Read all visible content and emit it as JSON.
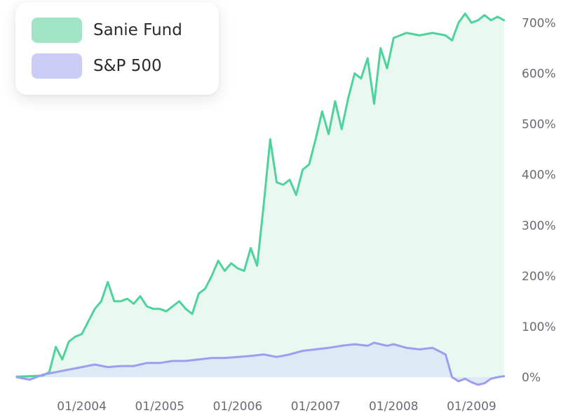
{
  "chart_data": {
    "type": "line",
    "title": "",
    "xlabel": "",
    "ylabel": "",
    "x_tick_labels": [
      "01/2004",
      "01/2005",
      "01/2006",
      "01/2007",
      "01/2008",
      "01/2009"
    ],
    "y_tick_labels": [
      "0%",
      "100%",
      "200%",
      "300%",
      "400%",
      "500%",
      "600%",
      "700%"
    ],
    "ylim": [
      0,
      720
    ],
    "x_range": [
      "2003-03",
      "2009-07"
    ],
    "legend_position": "top-left",
    "y_axis_position": "right",
    "series": [
      {
        "name": "Sanie Fund",
        "color": "#4dd39b",
        "fill": "#e5f8ee",
        "points": [
          [
            "2003-03",
            1
          ],
          [
            "2003-05",
            2
          ],
          [
            "2003-07",
            3
          ],
          [
            "2003-08",
            10
          ],
          [
            "2003-09",
            60
          ],
          [
            "2003-10",
            35
          ],
          [
            "2003-11",
            70
          ],
          [
            "2003-12",
            80
          ],
          [
            "2004-01",
            85
          ],
          [
            "2004-02",
            110
          ],
          [
            "2004-03",
            135
          ],
          [
            "2004-04",
            150
          ],
          [
            "2004-05",
            188
          ],
          [
            "2004-06",
            150
          ],
          [
            "2004-07",
            150
          ],
          [
            "2004-08",
            155
          ],
          [
            "2004-09",
            145
          ],
          [
            "2004-10",
            160
          ],
          [
            "2004-11",
            140
          ],
          [
            "2004-12",
            135
          ],
          [
            "2005-01",
            135
          ],
          [
            "2005-02",
            130
          ],
          [
            "2005-03",
            140
          ],
          [
            "2005-04",
            150
          ],
          [
            "2005-05",
            135
          ],
          [
            "2005-06",
            125
          ],
          [
            "2005-07",
            165
          ],
          [
            "2005-08",
            175
          ],
          [
            "2005-09",
            200
          ],
          [
            "2005-10",
            230
          ],
          [
            "2005-11",
            210
          ],
          [
            "2005-12",
            225
          ],
          [
            "2006-01",
            215
          ],
          [
            "2006-02",
            210
          ],
          [
            "2006-03",
            255
          ],
          [
            "2006-04",
            220
          ],
          [
            "2006-05",
            340
          ],
          [
            "2006-06",
            470
          ],
          [
            "2006-07",
            385
          ],
          [
            "2006-08",
            380
          ],
          [
            "2006-09",
            390
          ],
          [
            "2006-10",
            360
          ],
          [
            "2006-11",
            410
          ],
          [
            "2006-12",
            420
          ],
          [
            "2007-01",
            470
          ],
          [
            "2007-02",
            525
          ],
          [
            "2007-03",
            480
          ],
          [
            "2007-04",
            545
          ],
          [
            "2007-05",
            490
          ],
          [
            "2007-06",
            550
          ],
          [
            "2007-07",
            600
          ],
          [
            "2007-08",
            590
          ],
          [
            "2007-09",
            630
          ],
          [
            "2007-10",
            540
          ],
          [
            "2007-11",
            650
          ],
          [
            "2007-12",
            610
          ],
          [
            "2008-01",
            670
          ],
          [
            "2008-02",
            675
          ],
          [
            "2008-03",
            680
          ],
          [
            "2008-05",
            675
          ],
          [
            "2008-07",
            680
          ],
          [
            "2008-09",
            675
          ],
          [
            "2008-10",
            665
          ],
          [
            "2008-11",
            700
          ],
          [
            "2008-12",
            718
          ],
          [
            "2009-01",
            700
          ],
          [
            "2009-02",
            705
          ],
          [
            "2009-03",
            715
          ],
          [
            "2009-04",
            705
          ],
          [
            "2009-05",
            712
          ],
          [
            "2009-06",
            705
          ]
        ]
      },
      {
        "name": "S&P 500",
        "color": "#9c9ef0",
        "fill": "#dde7f6",
        "points": [
          [
            "2003-03",
            0
          ],
          [
            "2003-05",
            -5
          ],
          [
            "2003-07",
            5
          ],
          [
            "2003-09",
            10
          ],
          [
            "2003-11",
            15
          ],
          [
            "2004-01",
            20
          ],
          [
            "2004-03",
            25
          ],
          [
            "2004-05",
            20
          ],
          [
            "2004-07",
            22
          ],
          [
            "2004-09",
            22
          ],
          [
            "2004-11",
            28
          ],
          [
            "2005-01",
            28
          ],
          [
            "2005-03",
            32
          ],
          [
            "2005-05",
            32
          ],
          [
            "2005-07",
            35
          ],
          [
            "2005-09",
            38
          ],
          [
            "2005-11",
            38
          ],
          [
            "2006-01",
            40
          ],
          [
            "2006-03",
            42
          ],
          [
            "2006-05",
            45
          ],
          [
            "2006-07",
            40
          ],
          [
            "2006-09",
            45
          ],
          [
            "2006-11",
            52
          ],
          [
            "2007-01",
            55
          ],
          [
            "2007-03",
            58
          ],
          [
            "2007-05",
            62
          ],
          [
            "2007-07",
            65
          ],
          [
            "2007-09",
            62
          ],
          [
            "2007-10",
            68
          ],
          [
            "2007-12",
            62
          ],
          [
            "2008-01",
            65
          ],
          [
            "2008-03",
            58
          ],
          [
            "2008-05",
            55
          ],
          [
            "2008-07",
            58
          ],
          [
            "2008-09",
            45
          ],
          [
            "2008-10",
            0
          ],
          [
            "2008-11",
            -8
          ],
          [
            "2008-12",
            -3
          ],
          [
            "2009-01",
            -10
          ],
          [
            "2009-02",
            -15
          ],
          [
            "2009-03",
            -12
          ],
          [
            "2009-04",
            -3
          ],
          [
            "2009-05",
            0
          ],
          [
            "2009-06",
            2
          ]
        ]
      }
    ]
  }
}
